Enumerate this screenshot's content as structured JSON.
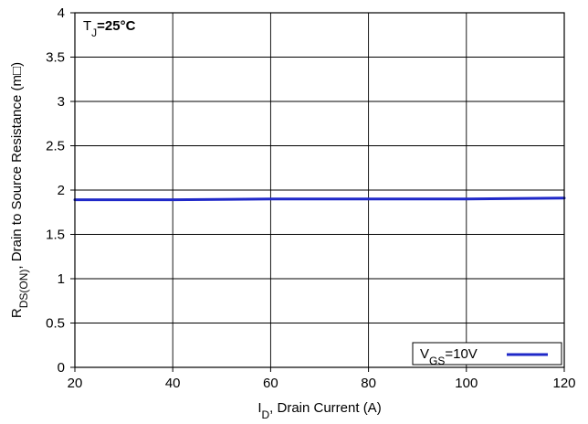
{
  "chart_data": {
    "type": "line",
    "title": "",
    "xlabel": {
      "main": "I",
      "sub": "D",
      "rest": ", Drain Current (A)"
    },
    "ylabel": {
      "main": "R",
      "sub": "DS(ON)",
      "rest": ", Drain to Source Resistance (m□)"
    },
    "xlim": [
      20,
      120
    ],
    "ylim": [
      0,
      4
    ],
    "x_ticks": [
      "20",
      "40",
      "60",
      "80",
      "100",
      "120"
    ],
    "y_ticks": [
      "0",
      "0.5",
      "1",
      "1.5",
      "2",
      "2.5",
      "3",
      "3.5",
      "4"
    ],
    "grid": true,
    "annotation": {
      "main": "T",
      "sub": "J",
      "rest": "=25°C"
    },
    "legend": {
      "placement": "bottom-right",
      "main": "V",
      "sub": "GS",
      "rest": "=10V"
    },
    "series": [
      {
        "name": "VGS=10V",
        "color": "#1f28c8",
        "x": [
          20,
          40,
          60,
          80,
          100,
          120
        ],
        "y": [
          1.89,
          1.89,
          1.9,
          1.9,
          1.9,
          1.91
        ]
      }
    ]
  }
}
